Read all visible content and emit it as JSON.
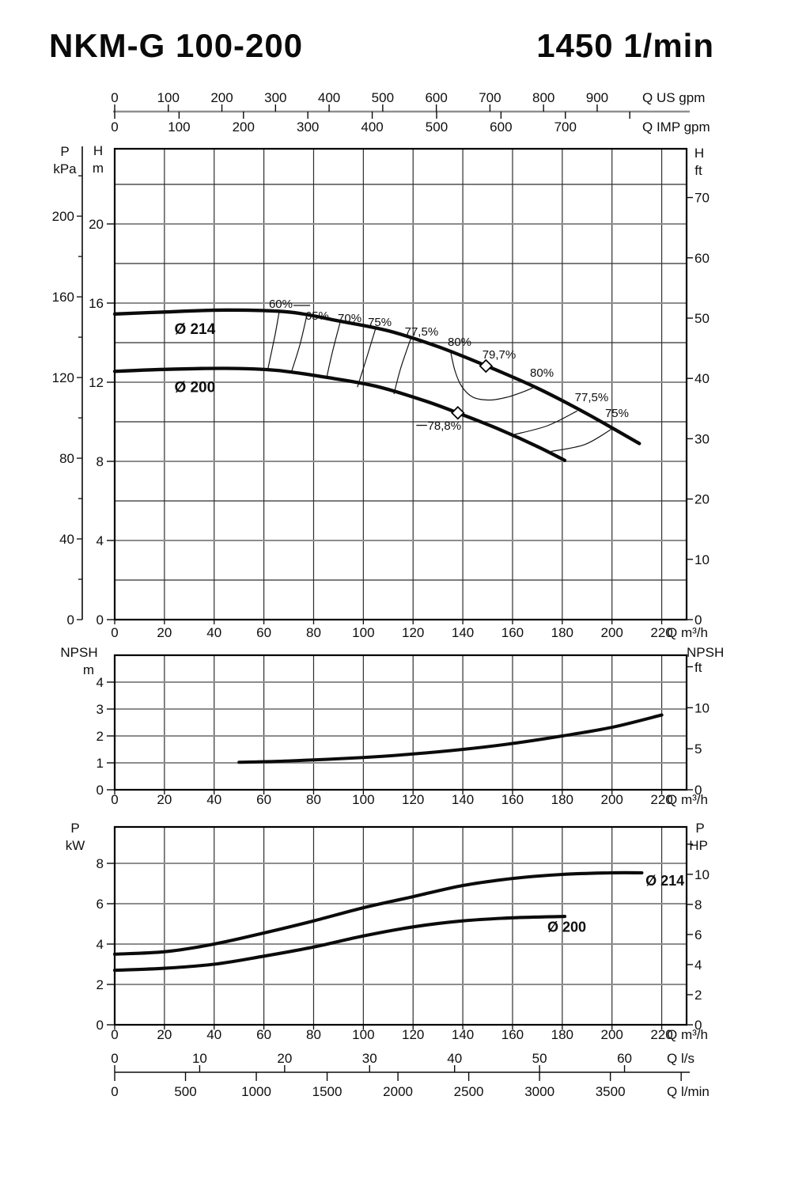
{
  "colors": {
    "ink": "#0b0b0b",
    "grid_dark": "#2f2f2f",
    "grid_light": "#8d8d8d",
    "scale_line": "#8f8f8f",
    "background": "#ffffff"
  },
  "header": {
    "model": "NKM-G 100-200",
    "speed": "1450 1/min"
  },
  "top_scales": {
    "us_gpm": {
      "unit": "Q US gpm",
      "ticks": [
        0,
        100,
        200,
        300,
        400,
        500,
        600,
        700,
        800,
        900
      ],
      "extra_ticks": [],
      "m3h_per_unit": 0.22712
    },
    "imp_gpm": {
      "unit": "Q IMP gpm",
      "ticks": [
        0,
        100,
        200,
        300,
        400,
        500,
        600,
        700
      ],
      "extra_ticks": [
        800
      ],
      "m3h_per_unit": 0.27277
    }
  },
  "bottom_scales": {
    "l_s": {
      "unit": "Q l/s",
      "ticks": [
        0,
        10,
        20,
        30,
        40,
        50,
        60
      ],
      "extra_ticks": [],
      "m3h_per_unit": 3.6
    },
    "l_min": {
      "unit": "Q l/min",
      "ticks": [
        0,
        500,
        1000,
        1500,
        2000,
        2500,
        3000,
        3500
      ],
      "extra_ticks": [
        4000
      ],
      "m3h_per_unit": 0.06
    }
  },
  "x_axis": {
    "unit": "Q m³/h",
    "ticks": [
      0,
      20,
      40,
      60,
      80,
      100,
      120,
      140,
      160,
      180,
      200,
      220
    ],
    "max": 230
  },
  "chart_data": [
    {
      "id": "head",
      "type": "line",
      "y_axes": {
        "m": {
          "name": "H",
          "unit": "m",
          "labels": [
            0,
            4,
            8,
            12,
            16,
            20
          ],
          "grid_lines": [
            2,
            4,
            6,
            8,
            10,
            12,
            14,
            16,
            18,
            20,
            22
          ],
          "max": 23.8
        },
        "kpa": {
          "name": "P",
          "unit": "kPa",
          "labels": [
            0,
            40,
            80,
            120,
            160,
            200
          ],
          "tick_step": 20,
          "tick_max": 220
        },
        "ft": {
          "name": "H",
          "unit": "ft",
          "labels": [
            0,
            10,
            20,
            30,
            40,
            50,
            60,
            70
          ],
          "extra_ticks": []
        }
      },
      "series": [
        {
          "name": "Ø 214",
          "label_pos": [
            24,
            14.45
          ],
          "points": [
            [
              0,
              15.45
            ],
            [
              20,
              15.55
            ],
            [
              45,
              15.65
            ],
            [
              70,
              15.55
            ],
            [
              90,
              15.1
            ],
            [
              110,
              14.6
            ],
            [
              130,
              13.8
            ],
            [
              150,
              12.8
            ],
            [
              170,
              11.7
            ],
            [
              190,
              10.4
            ],
            [
              211,
              8.9
            ]
          ]
        },
        {
          "name": "Ø 200",
          "label_pos": [
            24,
            11.5
          ],
          "points": [
            [
              0,
              12.55
            ],
            [
              20,
              12.65
            ],
            [
              45,
              12.7
            ],
            [
              65,
              12.6
            ],
            [
              85,
              12.25
            ],
            [
              105,
              11.8
            ],
            [
              125,
              11.05
            ],
            [
              140,
              10.35
            ],
            [
              155,
              9.6
            ],
            [
              170,
              8.75
            ],
            [
              181,
              8.05
            ]
          ]
        }
      ],
      "efficiency_lines": [
        {
          "label": "60%",
          "label_pos": [
            66.8,
            15.76
          ],
          "leader": [
            [
              71.9,
              15.88
            ],
            [
              78.6,
              15.88
            ]
          ],
          "points": [
            [
              66.2,
              15.6
            ],
            [
              64.5,
              14.4
            ],
            [
              61.5,
              12.6
            ]
          ]
        },
        {
          "label": "65%",
          "label_pos": [
            81.4,
            15.16
          ],
          "points": [
            [
              77.2,
              15.35
            ],
            [
              74.5,
              13.9
            ],
            [
              70.9,
              12.45
            ]
          ]
        },
        {
          "label": "70%",
          "label_pos": [
            94.5,
            15.04
          ],
          "points": [
            [
              90.6,
              15.0
            ],
            [
              87.5,
              13.5
            ],
            [
              85.2,
              12.2
            ]
          ]
        },
        {
          "label": "75%",
          "label_pos": [
            106.6,
            14.84
          ],
          "points": [
            [
              105.0,
              14.75
            ],
            [
              101.0,
              13.1
            ],
            [
              97.6,
              11.75
            ]
          ]
        },
        {
          "label": "77,5%",
          "label_pos": [
            123.4,
            14.36
          ],
          "points": [
            [
              119.2,
              14.25
            ],
            [
              115.0,
              12.7
            ],
            [
              112.3,
              11.4
            ]
          ]
        },
        {
          "label": "80%",
          "label_pos": [
            138.7,
            13.84
          ],
          "points": [
            [
              135.0,
              13.6
            ],
            [
              136.8,
              12.6
            ],
            [
              139.5,
              11.8
            ],
            [
              144.0,
              11.25
            ],
            [
              151.0,
              11.1
            ],
            [
              158.0,
              11.25
            ],
            [
              165.0,
              11.55
            ],
            [
              169.2,
              11.78
            ]
          ]
        },
        {
          "label": "80%",
          "label_pos": [
            171.8,
            12.28
          ],
          "points": []
        },
        {
          "label": "77,5%",
          "label_pos": [
            191.8,
            11.04
          ],
          "points": [
            [
              186.0,
              10.55
            ],
            [
              174.0,
              9.8
            ],
            [
              160.5,
              9.35
            ]
          ]
        },
        {
          "label": "75%",
          "label_pos": [
            202.0,
            10.24
          ],
          "points": [
            [
              199.7,
              9.62
            ],
            [
              189.0,
              8.85
            ],
            [
              175.5,
              8.5
            ]
          ]
        }
      ],
      "bep_points": [
        {
          "label": "79,7%",
          "label_pos": [
            154.6,
            13.2
          ],
          "marker": [
            149.3,
            12.82
          ]
        },
        {
          "label": "78,8%",
          "label_pos": [
            132.6,
            9.6
          ],
          "leader": [
            [
              121.3,
              9.82
            ],
            [
              125.6,
              9.82
            ]
          ],
          "marker": [
            138.0,
            10.45
          ]
        }
      ]
    },
    {
      "id": "npsh",
      "type": "line",
      "y_axes": {
        "m": {
          "name": "NPSH",
          "unit": "m",
          "labels": [
            0,
            1,
            2,
            3,
            4
          ],
          "grid_lines": [
            1,
            2,
            3,
            4
          ],
          "max": 5
        },
        "ft": {
          "name": "NPSH",
          "unit": "ft",
          "labels": [
            0,
            5,
            10
          ],
          "extra_ticks": [
            15
          ]
        }
      },
      "series": [
        {
          "name": "NPSH",
          "points": [
            [
              50,
              1.02
            ],
            [
              70,
              1.07
            ],
            [
              100,
              1.2
            ],
            [
              120,
              1.33
            ],
            [
              140,
              1.5
            ],
            [
              160,
              1.72
            ],
            [
              180,
              2.0
            ],
            [
              200,
              2.32
            ],
            [
              220,
              2.78
            ]
          ]
        }
      ]
    },
    {
      "id": "power",
      "type": "line",
      "y_axes": {
        "kw": {
          "name": "P",
          "unit": "kW",
          "labels": [
            0,
            2,
            4,
            6,
            8
          ],
          "grid_lines": [
            2,
            4,
            6,
            8
          ],
          "max": 9.8
        },
        "hp": {
          "name": "P",
          "unit": "HP",
          "labels": [
            0,
            2,
            4,
            6,
            8,
            10
          ],
          "extra_ticks": [
            12
          ]
        }
      },
      "series": [
        {
          "name": "Ø 214",
          "label_pos": [
            213.5,
            6.9
          ],
          "points": [
            [
              0,
              3.5
            ],
            [
              20,
              3.62
            ],
            [
              40,
              4.0
            ],
            [
              60,
              4.55
            ],
            [
              80,
              5.15
            ],
            [
              100,
              5.8
            ],
            [
              120,
              6.35
            ],
            [
              140,
              6.9
            ],
            [
              160,
              7.25
            ],
            [
              180,
              7.45
            ],
            [
              200,
              7.53
            ],
            [
              212,
              7.53
            ]
          ]
        },
        {
          "name": "Ø 200",
          "label_pos": [
            174,
            4.6
          ],
          "points": [
            [
              0,
              2.7
            ],
            [
              20,
              2.8
            ],
            [
              40,
              3.0
            ],
            [
              60,
              3.4
            ],
            [
              80,
              3.85
            ],
            [
              100,
              4.4
            ],
            [
              120,
              4.85
            ],
            [
              140,
              5.15
            ],
            [
              160,
              5.3
            ],
            [
              181,
              5.37
            ]
          ]
        }
      ]
    }
  ]
}
